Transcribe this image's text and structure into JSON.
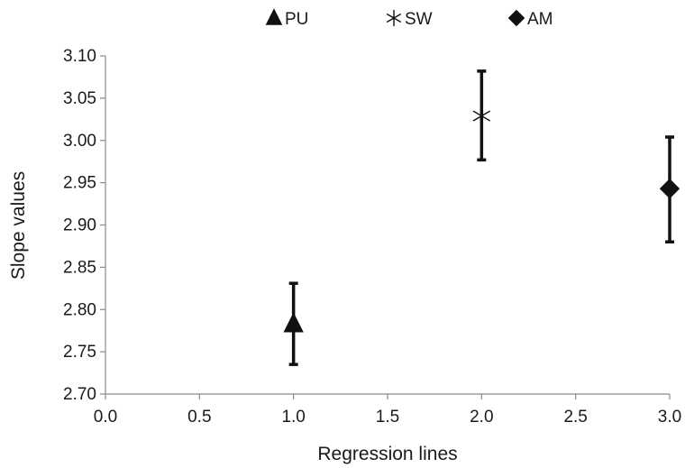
{
  "chart_data": {
    "type": "scatter",
    "title": "",
    "xlabel": "Regression lines",
    "ylabel": "Slope values",
    "xlim": [
      0.0,
      3.0
    ],
    "ylim": [
      2.7,
      3.1
    ],
    "x_ticks": [
      "0.0",
      "0.5",
      "1.0",
      "1.5",
      "2.0",
      "2.5",
      "3.0"
    ],
    "y_ticks": [
      "2.70",
      "2.75",
      "2.80",
      "2.85",
      "2.90",
      "2.95",
      "3.00",
      "3.05",
      "3.10"
    ],
    "grid": false,
    "legend_position": "top",
    "series": [
      {
        "name": "PU",
        "marker": "triangle",
        "x": 1.0,
        "y": 2.783,
        "err_low": 2.735,
        "err_high": 2.831,
        "color": "#111111"
      },
      {
        "name": "SW",
        "marker": "asterisk",
        "x": 2.0,
        "y": 3.029,
        "err_low": 2.977,
        "err_high": 3.082,
        "color": "#111111"
      },
      {
        "name": "AM",
        "marker": "diamond",
        "x": 3.0,
        "y": 2.943,
        "err_low": 2.88,
        "err_high": 3.004,
        "color": "#111111"
      }
    ]
  }
}
